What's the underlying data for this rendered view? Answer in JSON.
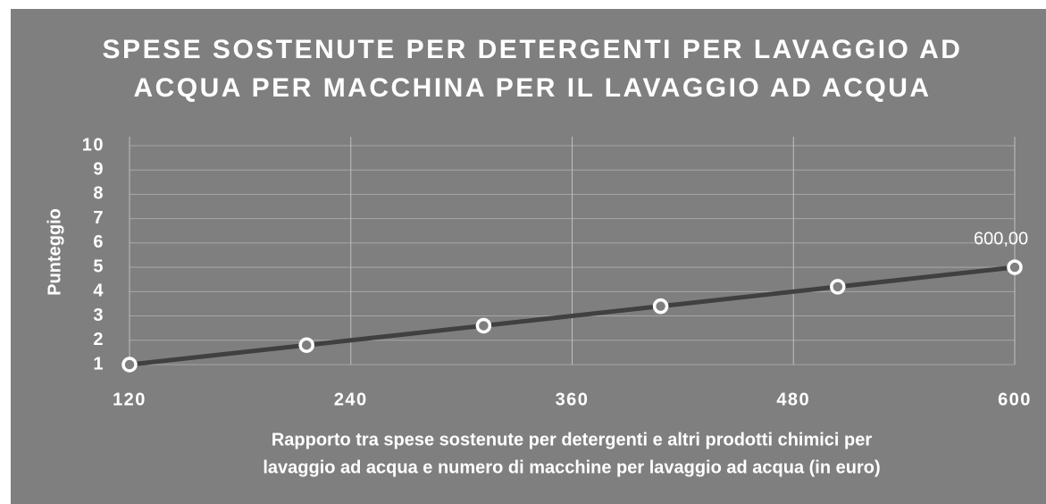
{
  "chart_data": {
    "type": "line",
    "title": [
      "SPESE SOSTENUTE PER DETERGENTI PER LAVAGGIO AD",
      "ACQUA PER MACCHINA PER IL LAVAGGIO AD ACQUA"
    ],
    "xlabel": [
      "Rapporto tra spese sostenute per detergenti e altri prodotti chimici per",
      "lavaggio ad acqua e numero di macchine per lavaggio ad acqua (in euro)"
    ],
    "ylabel": "Punteggio",
    "x": [
      120,
      216,
      312,
      408,
      504,
      600
    ],
    "series": [
      {
        "name": "Punteggio",
        "color": "#404040",
        "marker_color": "#ffffff",
        "values": [
          1,
          1.8,
          2.6,
          3.4,
          4.2,
          5
        ]
      }
    ],
    "point_labels": [
      null,
      null,
      null,
      null,
      null,
      "600,00"
    ],
    "xlim": [
      120,
      600
    ],
    "xticks": [
      120,
      240,
      360,
      480,
      600
    ],
    "ylim": [
      1,
      10
    ],
    "yticks": [
      1,
      2,
      3,
      4,
      5,
      6,
      7,
      8,
      9,
      10
    ],
    "grid": true,
    "background": "#7f7f7f"
  }
}
